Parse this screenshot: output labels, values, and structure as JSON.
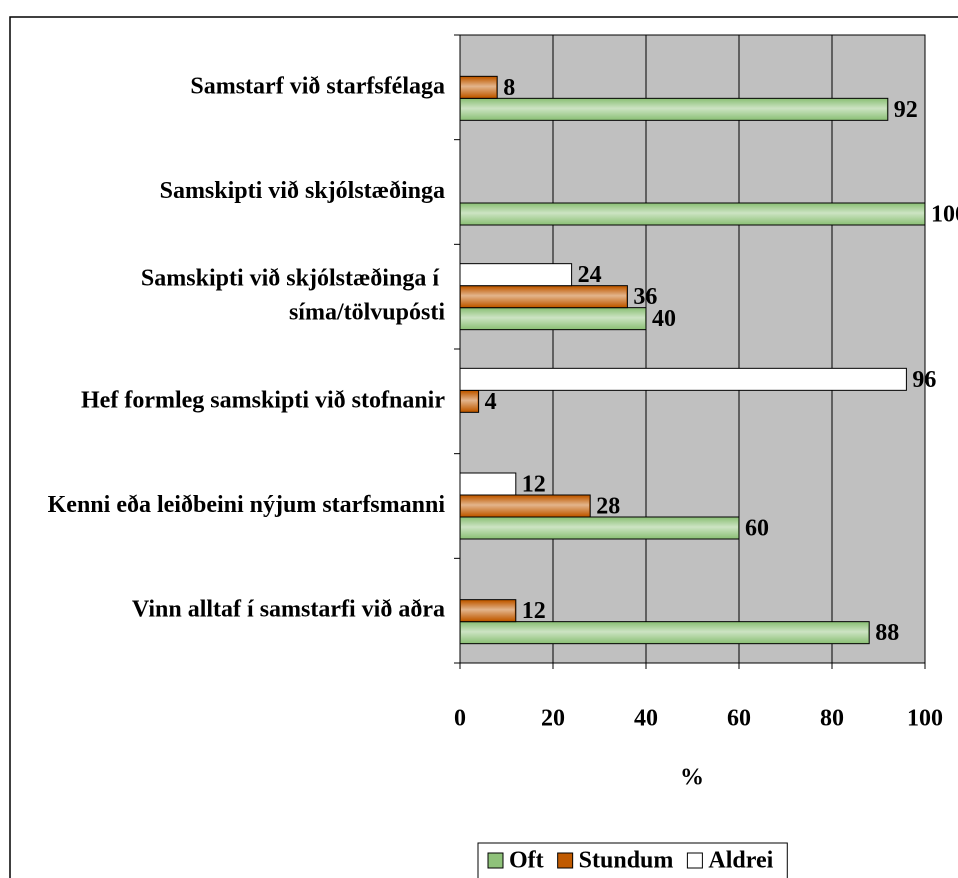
{
  "chart_data": {
    "type": "barh",
    "categories": [
      "Samstarf við starfsfélaga",
      "Samskipti við skjólstæðinga",
      "Samskipti við skjólstæðinga í síma/tölvupósti",
      "Hef formleg samskipti við stofnanir",
      "Kenni eða leiðbeini nýjum starfsmanni",
      "Vinn alltaf í samstarfi við aðra"
    ],
    "series": [
      {
        "name": "Oft",
        "color": "#8fc27a",
        "values": [
          92,
          100,
          40,
          null,
          60,
          88
        ]
      },
      {
        "name": "Stundum",
        "color": "#c05a00",
        "values": [
          8,
          null,
          36,
          4,
          28,
          12
        ]
      },
      {
        "name": "Aldrei",
        "color": "#ffffff",
        "values": [
          null,
          null,
          24,
          96,
          12,
          null
        ]
      }
    ],
    "x_label": "%",
    "xlim": [
      0,
      100
    ],
    "xticks": [
      0,
      20,
      40,
      60,
      80,
      100
    ],
    "grid": true,
    "legend": "bottom"
  }
}
